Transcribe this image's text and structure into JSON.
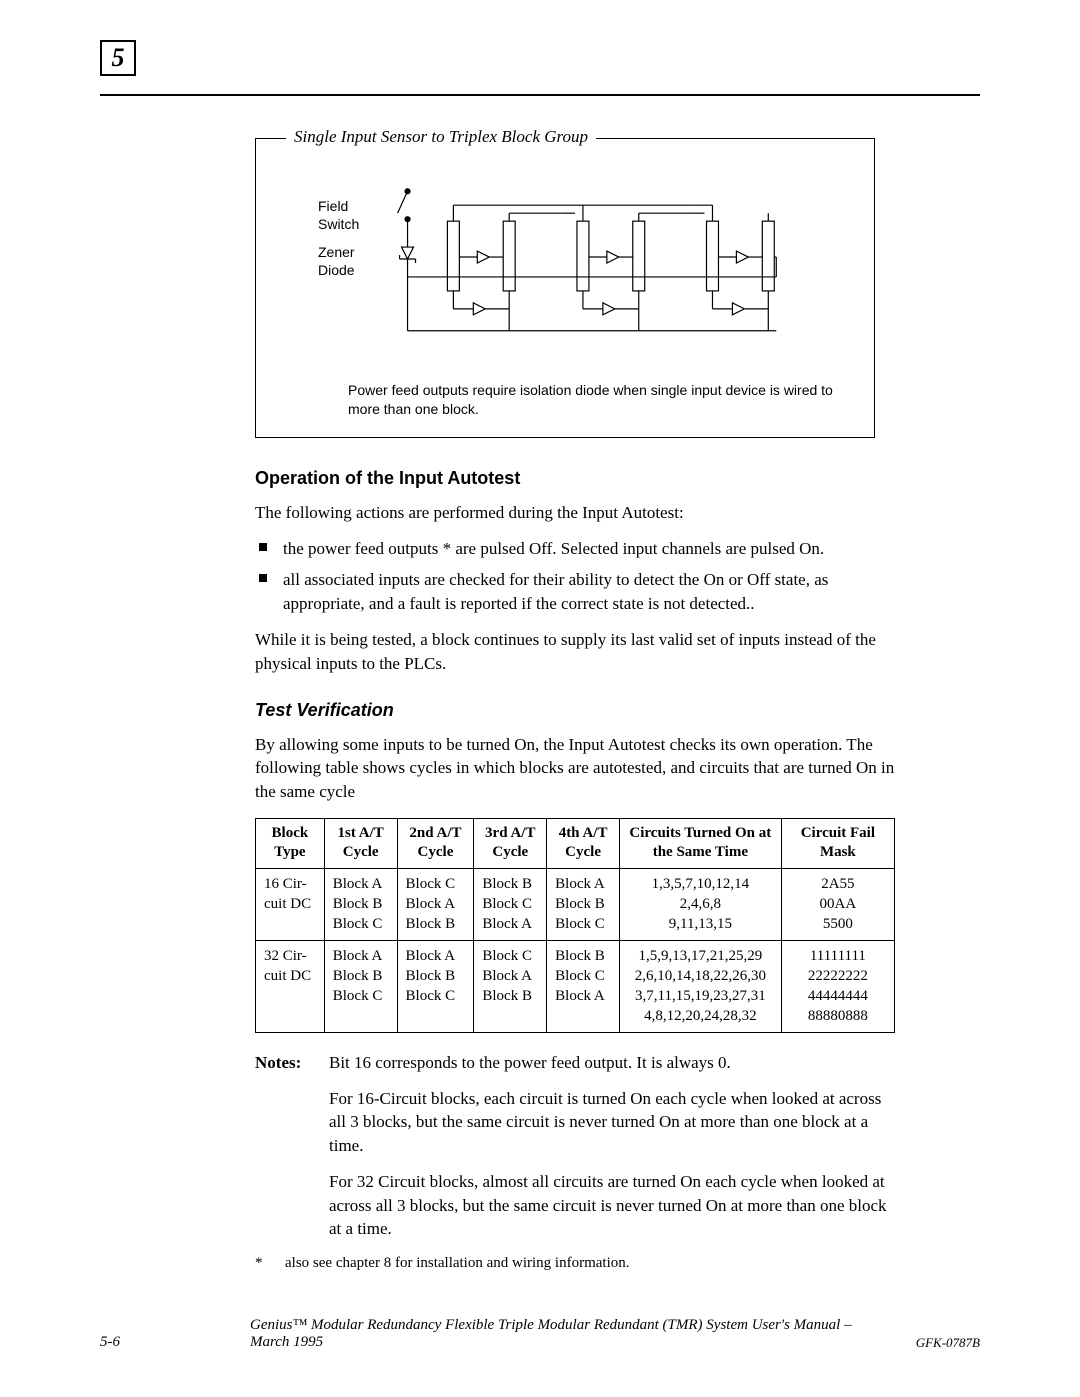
{
  "chapter_number": "5",
  "diagram": {
    "legend": "Single Input Sensor to Triplex Block Group",
    "labels": {
      "field_switch": "Field\nSwitch",
      "zener_diode": "Zener\nDiode"
    },
    "caption": "Power feed outputs require isolation diode when single input device is wired to more than one block.",
    "colors": {
      "stroke": "#000000",
      "bg": "#ffffff"
    }
  },
  "heading1": "Operation of the Input Autotest",
  "intro1": "The following actions are performed during the Input Autotest:",
  "bullets": [
    "the power feed outputs *  are pulsed Off. Selected input channels are pulsed On.",
    "all associated inputs are checked for their ability to detect the On or Off state, as appropriate, and a fault is reported if the correct state is not detected.."
  ],
  "para_after_bullets": "While it is being tested, a block continues to supply its last valid set of inputs instead of the physical inputs to the PLCs.",
  "heading2": "Test Verification",
  "intro2": "By allowing some inputs to be turned On, the Input Autotest checks its own operation. The following table shows cycles in which blocks are autotested, and circuits that are turned On in the same cycle",
  "table": {
    "columns": [
      "Block Type",
      "1st A/T Cycle",
      "2nd A/T Cycle",
      "3rd A/T Cycle",
      "4th A/T Cycle",
      "Circuits Turned On at the Same Time",
      "Circuit  Fail Mask"
    ],
    "rows": [
      {
        "block_type": "16 Cir-cuit DC",
        "c1": [
          "Block A",
          "Block B",
          "Block C"
        ],
        "c2": [
          "Block C",
          "Block A",
          "Block B"
        ],
        "c3": [
          "Block B",
          "Block C",
          "Block A"
        ],
        "c4": [
          "Block A",
          "Block B",
          "Block C"
        ],
        "circuits": [
          "1,3,5,7,10,12,14",
          "2,4,6,8",
          "9,11,13,15"
        ],
        "mask": [
          "2A55",
          "00AA",
          "5500"
        ]
      },
      {
        "block_type": "32 Cir-cuit  DC",
        "c1": [
          "Block A",
          "Block B",
          "Block C",
          ""
        ],
        "c2": [
          "",
          "Block A",
          "Block B",
          "Block C"
        ],
        "c3": [
          "Block C",
          "",
          "Block A",
          "Block B"
        ],
        "c4": [
          "Block B",
          "Block C",
          "",
          "Block A"
        ],
        "circuits": [
          "1,5,9,13,17,21,25,29",
          "2,6,10,14,18,22,26,30",
          "3,7,11,15,19,23,27,31",
          "4,8,12,20,24,28,32"
        ],
        "mask": [
          "11111111",
          "22222222",
          "44444444",
          "88880888"
        ]
      }
    ]
  },
  "notes": {
    "label": "Notes:",
    "items": [
      "Bit 16 corresponds to the power feed output. It is always 0.",
      "For 16-Circuit blocks, each circuit is turned On each cycle when looked at across all 3 blocks, but the same circuit is never turned On at more than one block at a time.",
      "For 32 Circuit blocks, almost all circuits are turned On each cycle when looked at across all 3 blocks, but the same circuit is never turned On at more than one block at a time."
    ],
    "footnote_star": "*",
    "footnote": "also see chapter 8 for installation and wiring information."
  },
  "footer": {
    "page": "5-6",
    "title": "Genius™ Modular Redundancy Flexible Triple Modular Redundant (TMR) System User's Manual –March 1995",
    "doc_id": "GFK-0787B"
  }
}
